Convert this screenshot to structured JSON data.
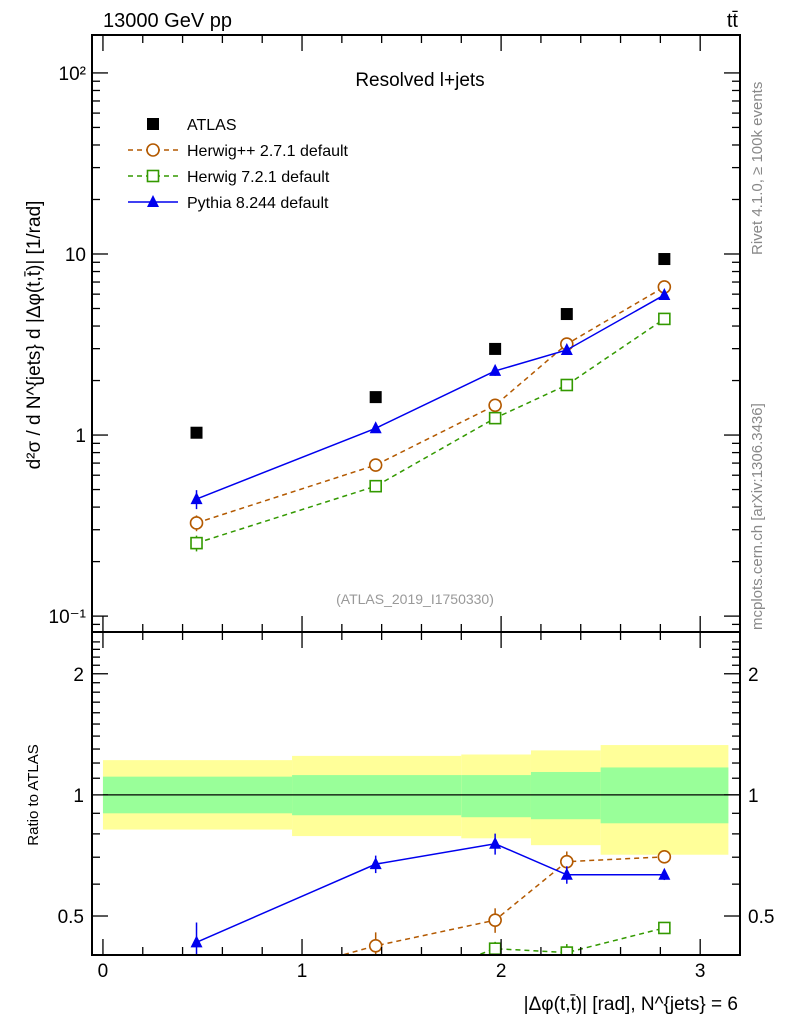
{
  "header": {
    "energy_label": "13000 GeV pp",
    "process_label": "tt̄"
  },
  "side_labels": {
    "rivet": "Rivet 4.1.0, ≥ 100k events",
    "mcplots": "mcplots.cern.ch [arXiv:1306.3436]"
  },
  "analysis_id": "(ATLAS_2019_I1750330)",
  "chart_data": {
    "type": "line",
    "title": "Resolved l+jets",
    "ylabel": "d²σ / d N^{jets} d |Δφ(t,t̄)| [1/rad]",
    "xlabel": "|Δφ(t,t̄)| [rad], N^{jets} = 6",
    "ratio_ylabel": "Ratio to ATLAS",
    "xlim": [
      -0.055,
      3.2
    ],
    "ylim": [
      0.0817,
      162
    ],
    "yscale": "log",
    "ratio_ylim": [
      0.4,
      2.54
    ],
    "x_ticks": [
      "0",
      "1",
      "2",
      "3"
    ],
    "y_ticks": [
      {
        "v": 100,
        "label": "10²"
      },
      {
        "v": 10,
        "label": "10"
      },
      {
        "v": 1,
        "label": "1"
      },
      {
        "v": 0.1,
        "label": "10⁻¹"
      }
    ],
    "ratio_ticks": [
      {
        "v": 2,
        "label": "2"
      },
      {
        "v": 1,
        "label": "1"
      },
      {
        "v": 0.5,
        "label": "0.5"
      }
    ],
    "legend_position": "top-left",
    "x": [
      0.47,
      1.37,
      1.97,
      2.33,
      2.82
    ],
    "bin_edges": [
      0,
      0.95,
      1.8,
      2.15,
      2.5,
      3.1416
    ],
    "data": {
      "name": "ATLAS",
      "values": [
        1.03,
        1.62,
        2.99,
        4.66,
        9.38
      ]
    },
    "data_band_total": {
      "low": [
        0.82,
        0.79,
        0.78,
        0.75,
        0.71
      ],
      "high": [
        1.22,
        1.25,
        1.26,
        1.29,
        1.33
      ]
    },
    "data_band_stat": {
      "low": [
        0.9,
        0.89,
        0.88,
        0.87,
        0.85
      ],
      "high": [
        1.11,
        1.12,
        1.12,
        1.14,
        1.17
      ]
    },
    "series": [
      {
        "name": "Herwig++ 2.7.1 default",
        "color": "#b35900",
        "style": "dashed",
        "marker": "open-circle",
        "values": [
          0.327,
          0.683,
          1.46,
          3.18,
          6.58
        ],
        "rel_err": [
          0.1,
          0.08,
          0.07,
          0.06,
          0.02
        ]
      },
      {
        "name": "Herwig 7.2.1 default",
        "color": "#339900",
        "style": "dashed",
        "marker": "open-square",
        "values": [
          0.253,
          0.522,
          1.24,
          1.89,
          4.38
        ],
        "rel_err": [
          0.1,
          0.05,
          0.04,
          0.05,
          0.03
        ]
      },
      {
        "name": "Pythia 8.244 default",
        "color": "#0000ee",
        "style": "solid",
        "marker": "filled-triangle",
        "values": [
          0.443,
          1.09,
          2.26,
          2.95,
          5.94
        ],
        "rel_err": [
          0.12,
          0.05,
          0.06,
          0.05,
          0.03
        ]
      }
    ],
    "colors": {
      "band_total": "#ffff99",
      "band_stat": "#99ff99",
      "data": "#000000",
      "analysis_id": "#999999",
      "side_text": "#888888"
    }
  }
}
